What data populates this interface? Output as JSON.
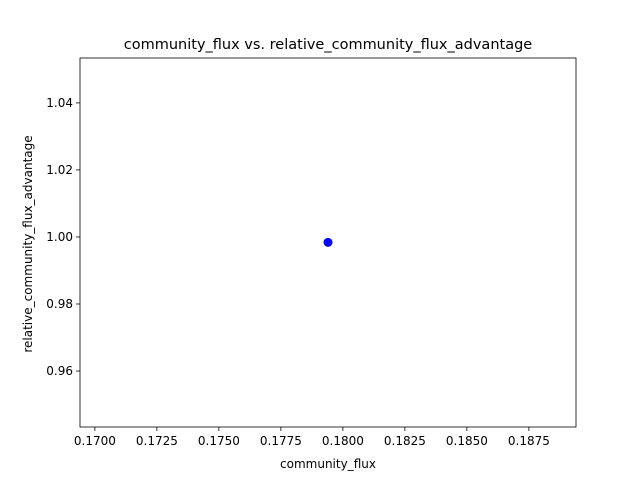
{
  "chart_data": {
    "type": "scatter",
    "title": "community_flux vs. relative_community_flux_advantage",
    "xlabel": "community_flux",
    "ylabel": "relative_community_flux_advantage",
    "xlim": [
      0.1694,
      0.1894
    ],
    "ylim": [
      0.9433,
      1.0534
    ],
    "x_ticks": [
      0.17,
      0.1725,
      0.175,
      0.1775,
      0.18,
      0.1825,
      0.185,
      0.1875
    ],
    "x_tick_labels": [
      "0.1700",
      "0.1725",
      "0.1750",
      "0.1775",
      "0.1800",
      "0.1825",
      "0.1850",
      "0.1875"
    ],
    "y_ticks": [
      0.96,
      0.98,
      1.0,
      1.02,
      1.04
    ],
    "y_tick_labels": [
      "0.96",
      "0.98",
      "1.00",
      "1.02",
      "1.04"
    ],
    "grid": false,
    "series": [
      {
        "color": "#0000ff",
        "points": [
          {
            "x": 0.1794,
            "y": 0.9984
          }
        ]
      }
    ]
  }
}
